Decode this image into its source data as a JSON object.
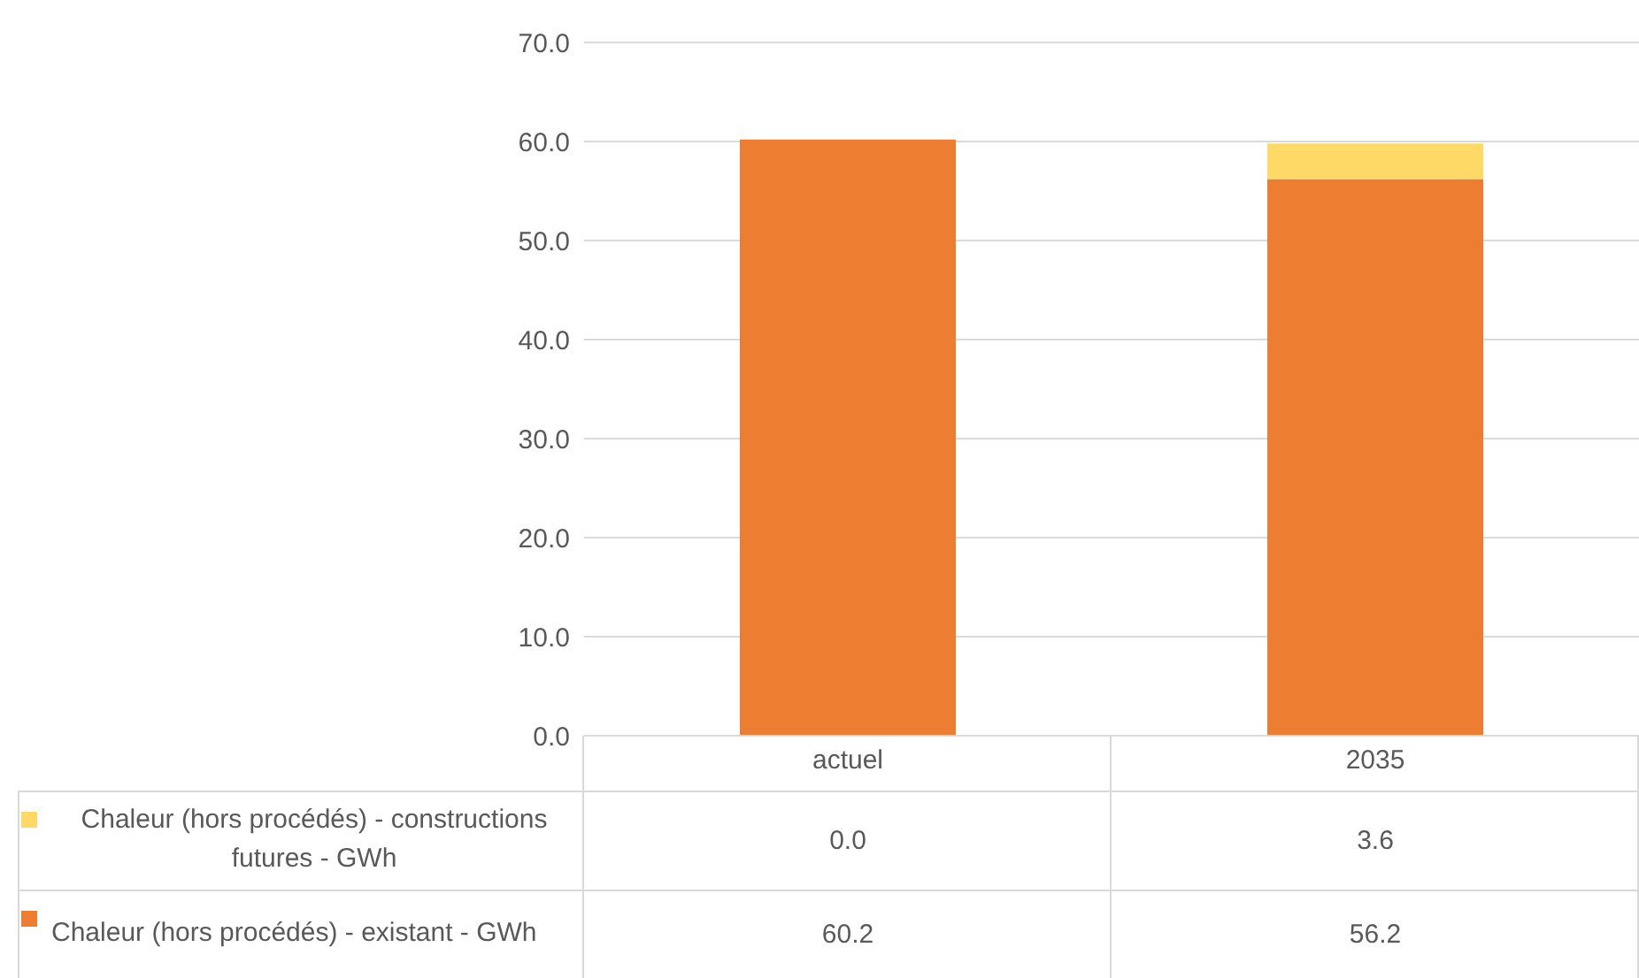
{
  "chart_data": {
    "type": "bar",
    "stacked": true,
    "categories": [
      "actuel",
      "2035"
    ],
    "series": [
      {
        "name": "Chaleur (hors procédés) - existant - GWh",
        "color": "#ed7d31",
        "values": [
          60.2,
          56.2
        ],
        "value_labels": [
          "60.2",
          "56.2"
        ]
      },
      {
        "name": "Chaleur (hors procédés)  - constructions futures - GWh",
        "color": "#ffd966",
        "values": [
          0.0,
          3.6
        ],
        "value_labels": [
          "0.0",
          "3.6"
        ]
      }
    ],
    "ylim": [
      0,
      70
    ],
    "yticks": [
      {
        "value": 0,
        "label": "0.0"
      },
      {
        "value": 10,
        "label": "10.0"
      },
      {
        "value": 20,
        "label": "20.0"
      },
      {
        "value": 30,
        "label": "30.0"
      },
      {
        "value": 40,
        "label": "40.0"
      },
      {
        "value": 50,
        "label": "50.0"
      },
      {
        "value": 60,
        "label": "60.0"
      },
      {
        "value": 70,
        "label": "70.0"
      }
    ],
    "grid": "y",
    "legend": "bottom left"
  }
}
